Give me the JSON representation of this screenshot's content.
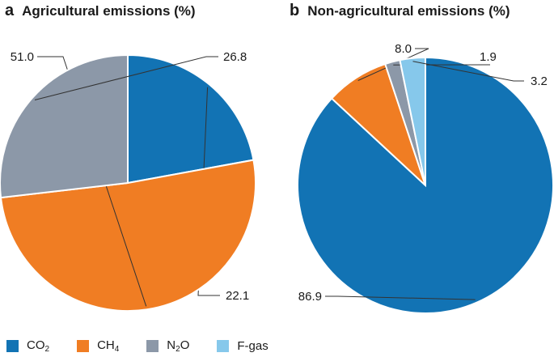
{
  "chart_data": [
    {
      "type": "pie",
      "panel_letter": "a",
      "title": "Agricultural emissions (%)",
      "slices": [
        {
          "key": "co2",
          "value": 22.1,
          "label": "22.1"
        },
        {
          "key": "ch4",
          "value": 51.0,
          "label": "51.0"
        },
        {
          "key": "n2o",
          "value": 26.8,
          "label": "26.8"
        }
      ]
    },
    {
      "type": "pie",
      "panel_letter": "b",
      "title": "Non-agricultural emissions (%)",
      "slices": [
        {
          "key": "co2",
          "value": 86.9,
          "label": "86.9"
        },
        {
          "key": "ch4",
          "value": 8.0,
          "label": "8.0"
        },
        {
          "key": "n2o",
          "value": 1.9,
          "label": "1.9"
        },
        {
          "key": "fgas",
          "value": 3.2,
          "label": "3.2"
        }
      ]
    }
  ],
  "legend": [
    {
      "key": "co2",
      "base": "CO",
      "sub": "2",
      "color": "#1273b4"
    },
    {
      "key": "ch4",
      "base": "CH",
      "sub": "4",
      "color": "#f07d23"
    },
    {
      "key": "n2o",
      "base": "N",
      "sub": "2",
      "tail": "O",
      "color": "#8c98a8"
    },
    {
      "key": "fgas",
      "base": "F-gas",
      "sub": "",
      "color": "#86c8eb"
    }
  ]
}
